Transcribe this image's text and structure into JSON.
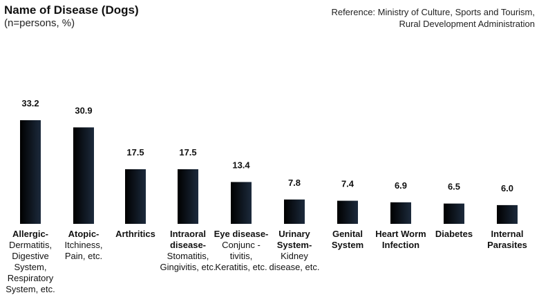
{
  "header": {
    "title": "Name of Disease (Dogs)",
    "subtitle": "(n=persons, %)",
    "source_line1": "Reference: Ministry of Culture, Sports and Tourism,",
    "source_line2": "Rural Development Administration"
  },
  "colors": {
    "bar_dark": "#000000",
    "bar_light": "#1c2a3c"
  },
  "chart_data": {
    "type": "bar",
    "title": "Name of Disease (Dogs)",
    "subtitle": "(n=persons, %)",
    "categories": [
      {
        "bold": "Allergic-",
        "rest": "Dermatitis, Digestive System, Respiratory System, etc."
      },
      {
        "bold": "Atopic-",
        "rest": "Itchiness, Pain, etc."
      },
      {
        "bold": "Arthritics",
        "rest": ""
      },
      {
        "bold": "Intraoral disease-",
        "rest": "Stomatitis, Gingivitis, etc."
      },
      {
        "bold": "Eye disease-",
        "rest": "Conjunc -tivitis, Keratitis, etc."
      },
      {
        "bold": "Urinary System-",
        "rest": "Kidney disease, etc."
      },
      {
        "bold": "Genital System",
        "rest": ""
      },
      {
        "bold": "Heart Worm Infection",
        "rest": ""
      },
      {
        "bold": "Diabetes",
        "rest": ""
      },
      {
        "bold": "Internal Parasites",
        "rest": ""
      }
    ],
    "values": [
      33.2,
      30.9,
      17.5,
      17.5,
      13.4,
      7.8,
      7.4,
      6.9,
      6.5,
      6.0
    ],
    "value_labels": [
      "33.2",
      "30.9",
      "17.5",
      "17.5",
      "13.4",
      "7.8",
      "7.4",
      "6.9",
      "6.5",
      "6.0"
    ],
    "ylim": [
      0,
      33.2
    ],
    "grid": false,
    "legend": "none"
  }
}
